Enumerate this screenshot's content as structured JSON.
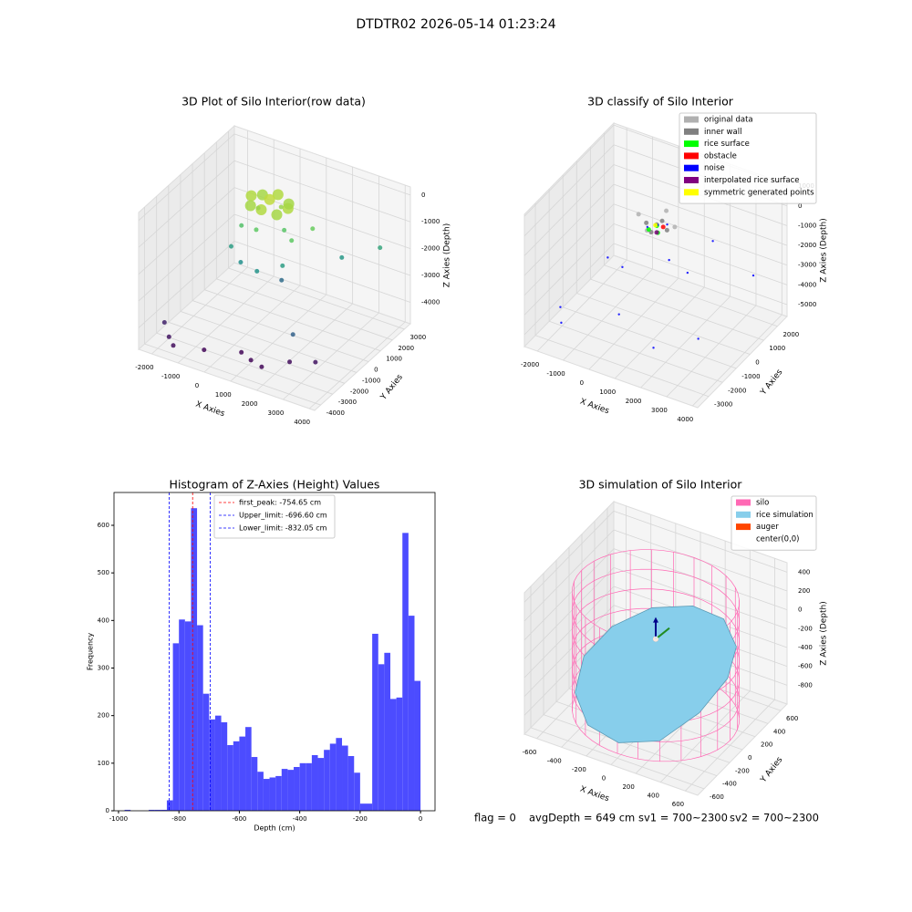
{
  "title": "DTDTR02 2026-05-14 01:23:24",
  "footer": [
    "flag = 0",
    "avgDepth = 649 cm",
    "sv1 = 700~2300",
    "sv2 = 700~2300"
  ],
  "chart_data": [
    {
      "type": "scatter3d",
      "title": "3D Plot of Silo Interior(row data)",
      "xlabel": "X Axies",
      "ylabel": "Y Axies",
      "zlabel": "Z Axies (Depth)",
      "xlim": [
        -2500,
        4200
      ],
      "ylim": [
        -4500,
        3500
      ],
      "zlim": [
        -4800,
        300
      ],
      "xticks": [
        -2000,
        -1000,
        0,
        1000,
        2000,
        3000,
        4000
      ],
      "yticks": [
        -4000,
        -3000,
        -2000,
        -1000,
        0,
        1000,
        2000,
        3000
      ],
      "zticks": [
        -4000,
        -3000,
        -2000,
        -1000,
        0
      ],
      "grid": true,
      "colormap": "viridis",
      "x": [
        1000,
        300,
        -400,
        300,
        800,
        -200,
        800,
        -200,
        300,
        600,
        0,
        200,
        -500,
        900,
        1500,
        1800,
        -800,
        -300,
        500,
        1200,
        2500,
        3500,
        800,
        2600,
        -2200,
        -1800,
        -1500,
        -600,
        500,
        1500,
        2200,
        3000,
        1000
      ],
      "y": [
        300,
        1000,
        300,
        -400,
        800,
        -200,
        -200,
        800,
        300,
        600,
        0,
        -600,
        -300,
        200,
        -500,
        600,
        -500,
        -800,
        -1200,
        -600,
        1500,
        2500,
        200,
        -2800,
        -3000,
        -3500,
        -3800,
        -3200,
        -2500,
        -3000,
        -2200,
        -1800,
        -2800
      ],
      "z": [
        -300,
        -300,
        -300,
        -300,
        -400,
        -400,
        -400,
        -400,
        -200,
        -500,
        -500,
        -1000,
        -1200,
        -1100,
        -1000,
        -900,
        -2000,
        -2300,
        -2200,
        -2000,
        -2100,
        -1800,
        -3000,
        -3200,
        -4300,
        -4500,
        -4600,
        -4700,
        -4700,
        -4700,
        -4600,
        -4500,
        -4700
      ]
    },
    {
      "type": "scatter3d",
      "title": "3D classify of Silo Interior",
      "xlabel": "X Axies",
      "ylabel": "Y Axies",
      "zlabel": "Z Axies (Depth)",
      "xlim": [
        -2500,
        4200
      ],
      "ylim": [
        -3800,
        2700
      ],
      "zlim": [
        -5600,
        1100
      ],
      "xticks": [
        -2000,
        -1000,
        0,
        1000,
        2000,
        3000,
        4000
      ],
      "yticks": [
        -3000,
        -2000,
        -1000,
        0,
        1000,
        2000
      ],
      "zticks": [
        -5000,
        -4000,
        -3000,
        -2000,
        -1000,
        0,
        1000
      ],
      "grid": true,
      "legend": "upper right",
      "series": [
        {
          "name": "original data",
          "color": "#b0b0b0",
          "x": [
            0,
            1400,
            700,
            700
          ],
          "y": [
            -200,
            -200,
            500,
            -900
          ],
          "z": [
            -300,
            -300,
            -300,
            -300
          ]
        },
        {
          "name": "inner wall",
          "color": "#808080",
          "x": [
            300,
            1100,
            700,
            700,
            700
          ],
          "y": [
            -200,
            -200,
            200,
            -600,
            -200
          ],
          "z": [
            -600,
            -600,
            -600,
            -600,
            -500
          ]
        },
        {
          "name": "rice surface",
          "color": "#00ff00",
          "x": [
            500,
            800,
            600
          ],
          "y": [
            -400,
            -300,
            0
          ],
          "z": [
            -700,
            -800,
            -750
          ]
        },
        {
          "name": "obstacle",
          "color": "#ff0000",
          "x": [
            900
          ],
          "y": [
            -100
          ],
          "z": [
            -600
          ]
        },
        {
          "name": "noise",
          "color": "#0000ff",
          "x": [
            800,
            1000,
            500,
            -500,
            1500,
            2500,
            -1800,
            -1500,
            200,
            1800,
            3000,
            3800,
            -200,
            2000
          ],
          "y": [
            -300,
            0,
            -500,
            -1500,
            -800,
            500,
            -2500,
            -3000,
            -2000,
            -2500,
            -1500,
            1000,
            -1000,
            -400
          ],
          "z": [
            -400,
            -500,
            -500,
            -1800,
            -1500,
            -1000,
            -4200,
            -4500,
            -4000,
            -4600,
            -4300,
            -2500,
            -2500,
            -2200
          ]
        },
        {
          "name": "interpolated rice surface",
          "color": "#800080",
          "x": [
            700
          ],
          "y": [
            -200
          ],
          "z": [
            -900
          ]
        },
        {
          "name": "symmetric generated points",
          "color": "#ffff00",
          "x": [
            600
          ],
          "y": [
            -100
          ],
          "z": [
            -650
          ]
        }
      ]
    },
    {
      "type": "histogram",
      "title": "Histogram of Z-Axies (Height) Values",
      "xlabel": "Depth (cm)",
      "ylabel": "Frequency",
      "color": "#4c4cff",
      "legend": "best",
      "bins": [
        -1000,
        -980,
        -960,
        -940,
        -920,
        -900,
        -880,
        -860,
        -840,
        -820,
        -800,
        -780,
        -760,
        -740,
        -720,
        -700,
        -680,
        -660,
        -640,
        -620,
        -600,
        -580,
        -560,
        -540,
        -520,
        -500,
        -480,
        -460,
        -440,
        -420,
        -400,
        -380,
        -360,
        -340,
        -320,
        -300,
        -280,
        -260,
        -240,
        -220,
        -200,
        -180,
        -160,
        -140,
        -120,
        -100,
        -80,
        -60,
        -40,
        -20,
        0
      ],
      "counts": [
        0,
        2,
        0,
        0,
        0,
        2,
        2,
        2,
        22,
        352,
        402,
        398,
        636,
        390,
        246,
        192,
        200,
        186,
        138,
        146,
        156,
        176,
        113,
        82,
        67,
        70,
        73,
        88,
        86,
        92,
        100,
        100,
        117,
        111,
        128,
        141,
        153,
        137,
        115,
        80,
        15,
        15,
        372,
        308,
        332,
        235,
        238,
        584,
        410,
        273
      ],
      "xlim": [
        -1015,
        48
      ],
      "ylim": [
        0,
        669
      ],
      "xticks": [
        -1000,
        -800,
        -600,
        -400,
        -200,
        0
      ],
      "yticks": [
        0,
        100,
        200,
        300,
        400,
        500,
        600
      ],
      "lines": [
        {
          "label": "first_peak: -754.65 cm",
          "value": -754.65,
          "color": "#ff0000"
        },
        {
          "label": "Upper_limit: -696.60 cm",
          "value": -696.6,
          "color": "#0000ff"
        },
        {
          "label": "Lower_limit: -832.05 cm",
          "value": -832.05,
          "color": "#0000ff"
        }
      ]
    },
    {
      "type": "surface3d",
      "title": "3D simulation of Silo Interior",
      "xlabel": "X Axies",
      "ylabel": "Y Axies",
      "zlabel": "Z Axies (Depth)",
      "xlim": [
        -700,
        700
      ],
      "ylim": [
        -700,
        700
      ],
      "zlim": [
        -1000,
        500
      ],
      "xticks": [
        -600,
        -400,
        -200,
        0,
        200,
        400,
        600
      ],
      "yticks": [
        -600,
        -400,
        -200,
        0,
        200,
        400,
        600
      ],
      "zticks": [
        -800,
        -600,
        -400,
        -200,
        0,
        200,
        400
      ],
      "grid": true,
      "legend": "upper right",
      "series": [
        {
          "name": "silo",
          "color": "#ff69b4",
          "radius": 600,
          "zlim": [
            -950,
            300
          ]
        },
        {
          "name": "rice simulation",
          "color": "#87ceeb",
          "x": [
            580,
            502,
            290,
            0,
            -290,
            -502,
            -580,
            -502,
            -290,
            0,
            290,
            502
          ],
          "y": [
            0,
            290,
            502,
            580,
            502,
            290,
            0,
            -290,
            -502,
            -580,
            -502,
            -290
          ],
          "z": [
            -300,
            -200,
            -150,
            -200,
            -300,
            -450,
            -600,
            -750,
            -850,
            -850,
            -750,
            -500
          ]
        },
        {
          "name": "auger",
          "color": "#ff4500",
          "x": [
            0
          ],
          "y": [
            0
          ],
          "z": [
            -150
          ]
        },
        {
          "name": "center(0,0)",
          "color": "#ffffff",
          "x": [
            0
          ],
          "y": [
            0
          ],
          "z": [
            -150
          ]
        }
      ]
    }
  ]
}
